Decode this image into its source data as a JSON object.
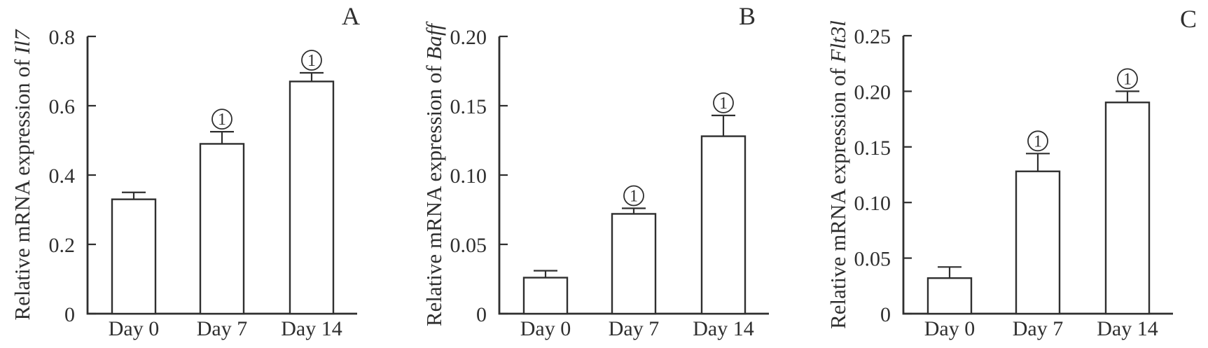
{
  "figure": {
    "background": "#ffffff",
    "ink_color": "#2f2f2f",
    "bar_fill": "#ffffff"
  },
  "chart_data": [
    {
      "type": "bar",
      "panel_label": "A",
      "ylabel_prefix": "Relative mRNA expression of ",
      "ylabel_gene": "Il7",
      "categories": [
        "Day 0",
        "Day 7",
        "Day 14"
      ],
      "values": [
        0.33,
        0.49,
        0.67
      ],
      "errors": [
        0.02,
        0.035,
        0.025
      ],
      "sig_markers": [
        "",
        "1",
        "1"
      ],
      "ylim": [
        0,
        0.8
      ],
      "yticks": [
        0,
        0.2,
        0.4,
        0.6,
        0.8
      ],
      "ytick_labels": [
        "0",
        "0.2",
        "0.4",
        "0.6",
        "0.8"
      ],
      "grid": false,
      "legend": null
    },
    {
      "type": "bar",
      "panel_label": "B",
      "ylabel_prefix": "Relative mRNA expression of ",
      "ylabel_gene": "Baff",
      "categories": [
        "Day 0",
        "Day 7",
        "Day 14"
      ],
      "values": [
        0.026,
        0.072,
        0.128
      ],
      "errors": [
        0.005,
        0.004,
        0.015
      ],
      "sig_markers": [
        "",
        "1",
        "1"
      ],
      "ylim": [
        0,
        0.2
      ],
      "yticks": [
        0,
        0.05,
        0.1,
        0.15,
        0.2
      ],
      "ytick_labels": [
        "0",
        "0.05",
        "0.10",
        "0.15",
        "0.20"
      ],
      "grid": false,
      "legend": null
    },
    {
      "type": "bar",
      "panel_label": "C",
      "ylabel_prefix": "Relative mRNA expression of ",
      "ylabel_gene": "Flt3l",
      "categories": [
        "Day 0",
        "Day 7",
        "Day 14"
      ],
      "values": [
        0.032,
        0.128,
        0.19
      ],
      "errors": [
        0.01,
        0.016,
        0.01
      ],
      "sig_markers": [
        "",
        "1",
        "1"
      ],
      "ylim": [
        0,
        0.25
      ],
      "yticks": [
        0,
        0.05,
        0.1,
        0.15,
        0.2,
        0.25
      ],
      "ytick_labels": [
        "0",
        "0.05",
        "0.10",
        "0.15",
        "0.20",
        "0.25"
      ],
      "grid": false,
      "legend": null
    }
  ]
}
